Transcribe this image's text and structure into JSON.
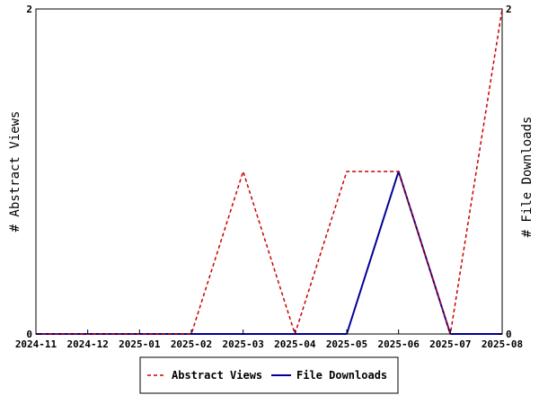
{
  "chart_data": {
    "type": "line",
    "x": [
      "2024-11",
      "2024-12",
      "2025-01",
      "2025-02",
      "2025-03",
      "2025-04",
      "2025-05",
      "2025-06",
      "2025-07",
      "2025-08"
    ],
    "ylabel": "# Abstract Views",
    "y2label": "# File Downloads",
    "ylim": [
      0,
      2
    ],
    "y2lim": [
      0,
      2
    ],
    "yticks": [
      "0",
      "2"
    ],
    "y2ticks": [
      "0",
      "2"
    ],
    "grid": false,
    "legend_position": "bottom-center",
    "series": [
      {
        "name": "Abstract Views",
        "axis": "left",
        "style": "dashed",
        "color": "#cc0000",
        "values": [
          0,
          0,
          0,
          0,
          1,
          0,
          1,
          1,
          0,
          2
        ]
      },
      {
        "name": "File Downloads",
        "axis": "right",
        "style": "solid",
        "color": "#000099",
        "values": [
          0,
          0,
          0,
          0,
          0,
          0,
          0,
          1,
          0,
          0
        ]
      }
    ]
  }
}
